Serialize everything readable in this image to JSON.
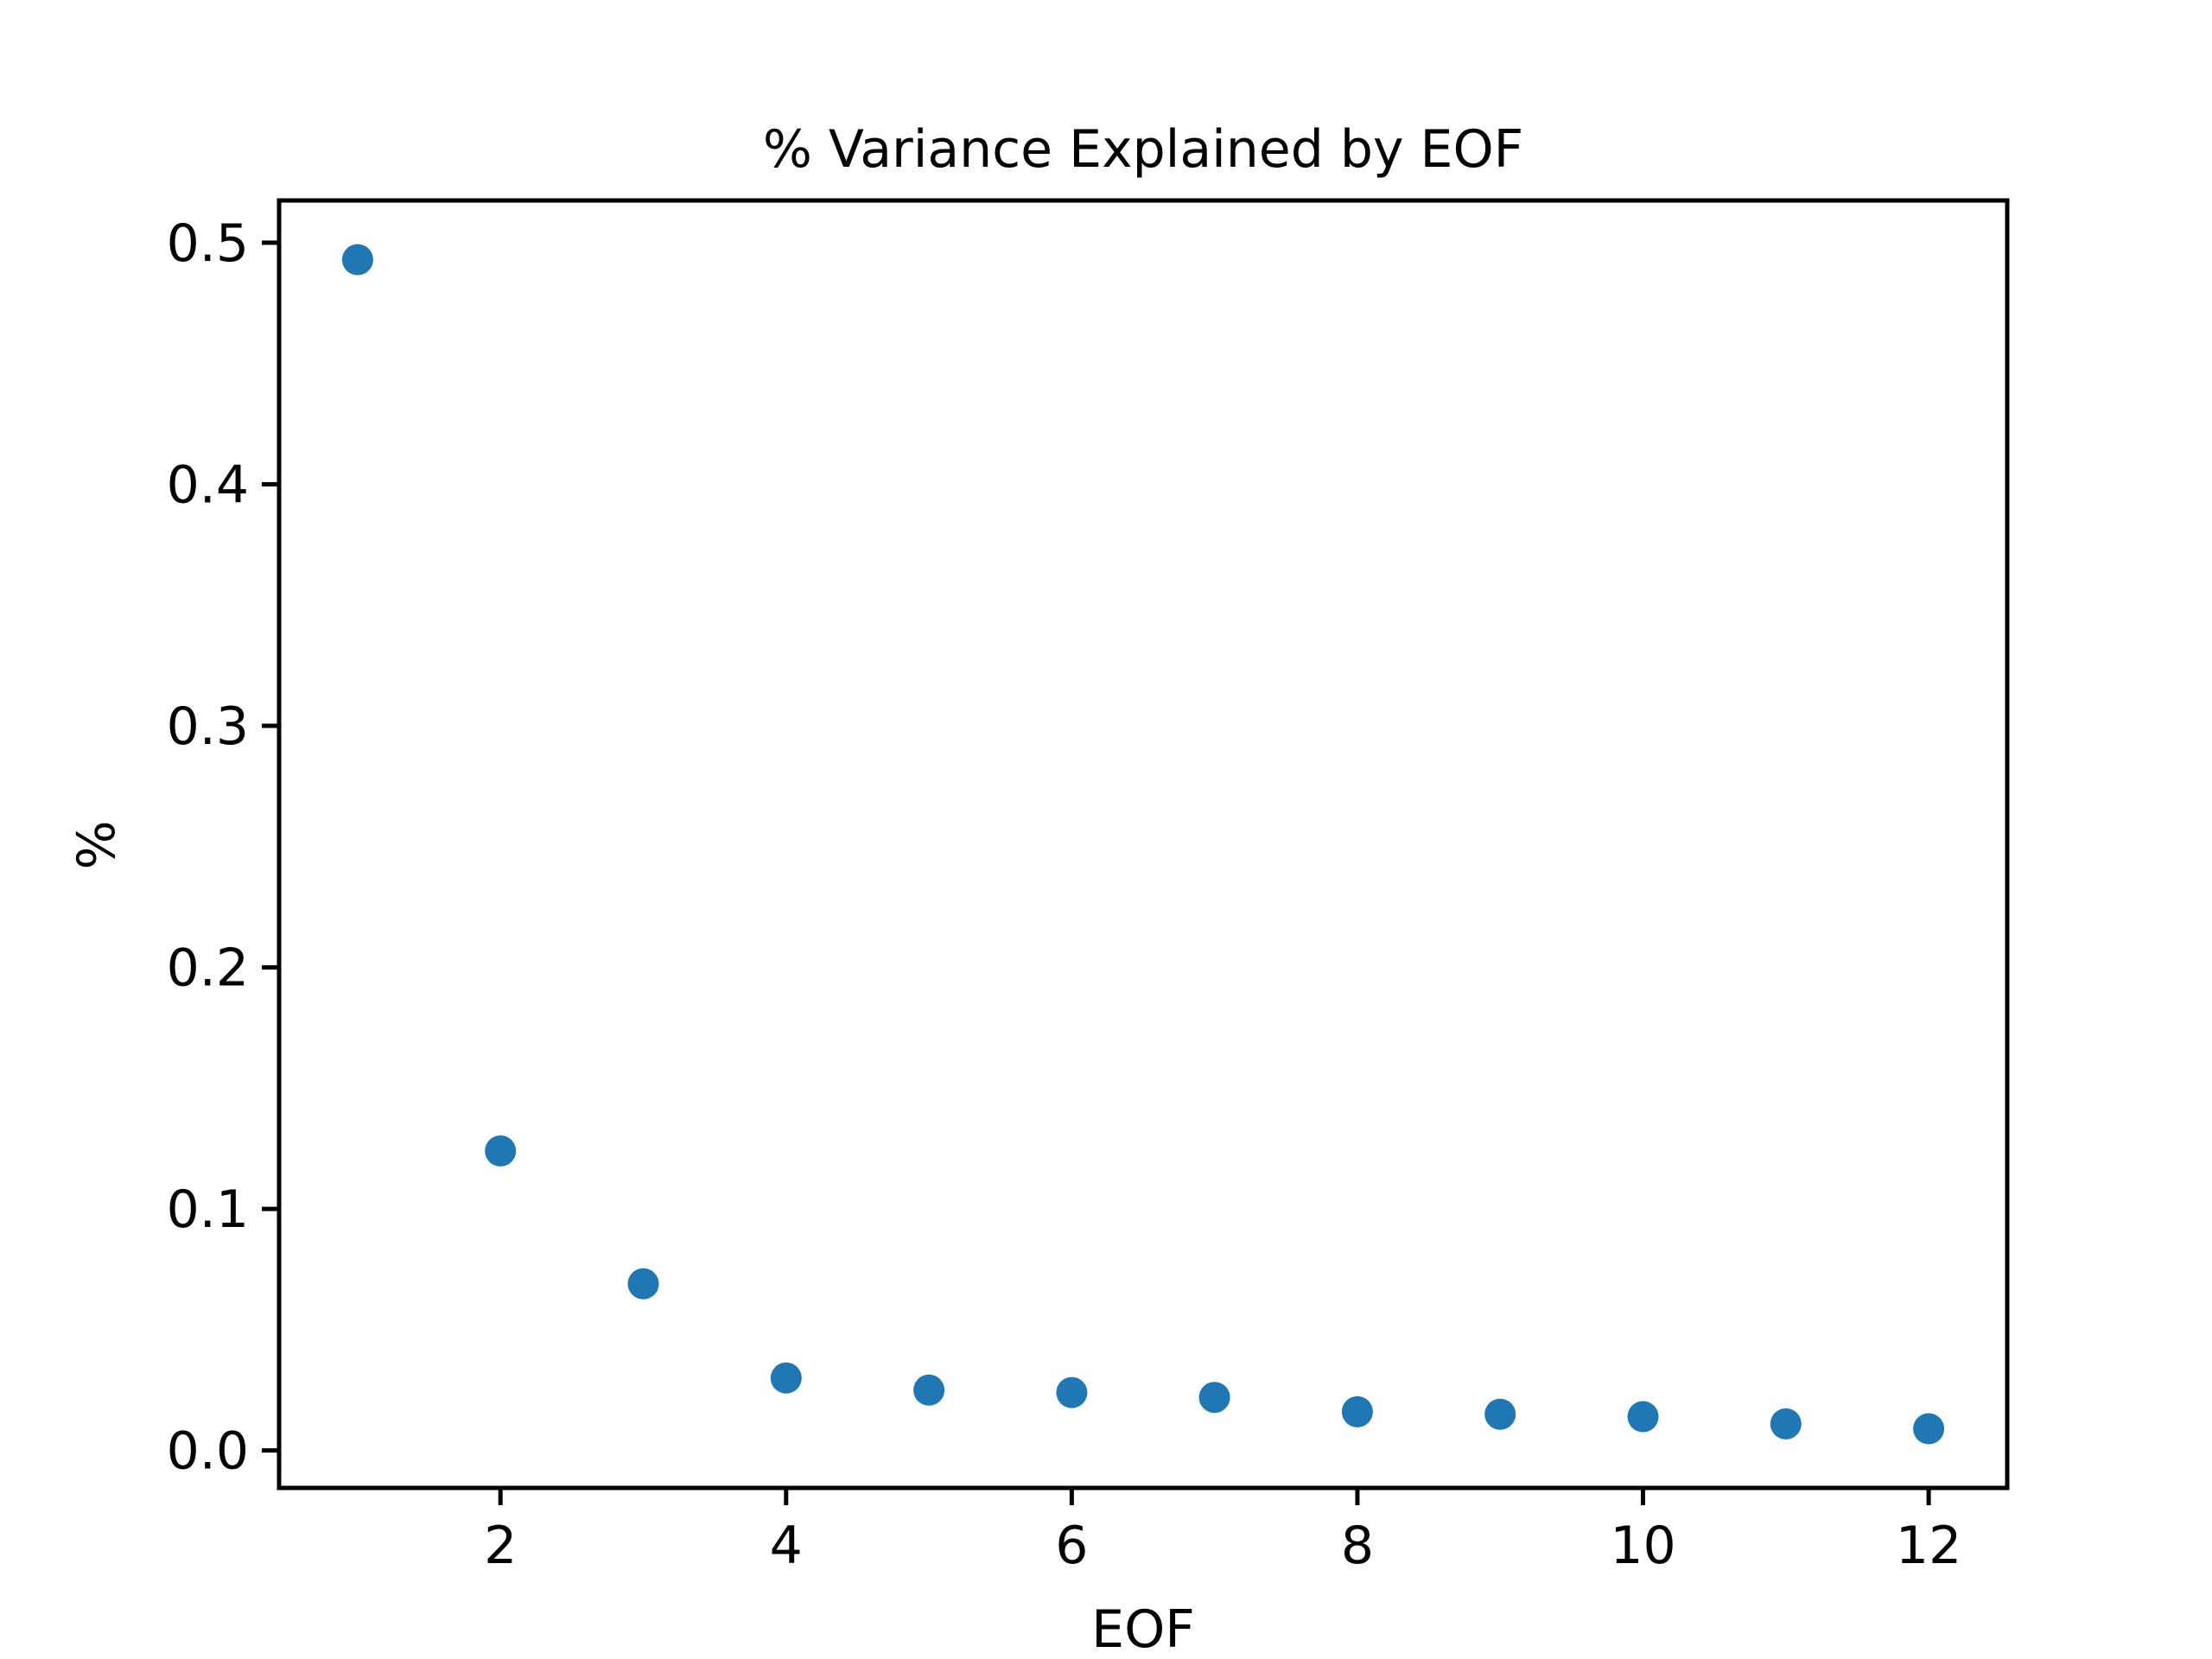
{
  "chart_data": {
    "type": "scatter",
    "title": "% Variance Explained by EOF",
    "xlabel": "EOF",
    "ylabel": "%",
    "xlim": [
      0.45,
      12.55
    ],
    "ylim": [
      -0.0155,
      0.5175
    ],
    "xticks": [
      2,
      4,
      6,
      8,
      10,
      12
    ],
    "xtick_labels": [
      "2",
      "4",
      "6",
      "8",
      "10",
      "12"
    ],
    "yticks": [
      0.0,
      0.1,
      0.2,
      0.3,
      0.4,
      0.5
    ],
    "ytick_labels": [
      "0.0",
      "0.1",
      "0.2",
      "0.3",
      "0.4",
      "0.5"
    ],
    "grid": false,
    "legend": false,
    "series": [
      {
        "color": "#1f77b4",
        "x": [
          1,
          2,
          3,
          4,
          5,
          6,
          7,
          8,
          9,
          10,
          11,
          12
        ],
        "y": [
          0.493,
          0.124,
          0.069,
          0.03,
          0.025,
          0.024,
          0.022,
          0.016,
          0.015,
          0.014,
          0.011,
          0.009
        ]
      }
    ]
  }
}
